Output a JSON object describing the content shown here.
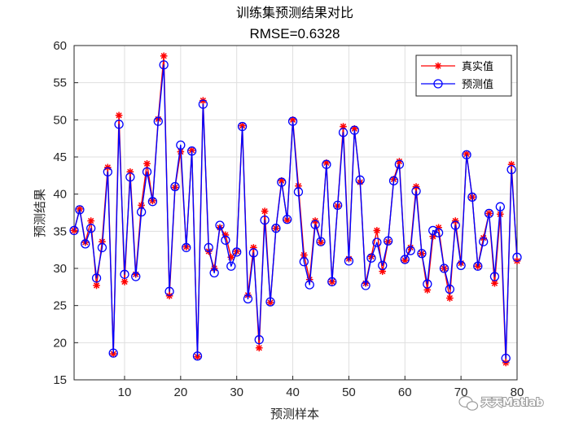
{
  "chart_data": {
    "type": "line",
    "title": "训练集预测结果对比",
    "subtitle": "RMSE=0.6328",
    "xlabel": "预测样本",
    "ylabel": "预测结果",
    "xlim": [
      1,
      80
    ],
    "ylim": [
      15,
      60
    ],
    "xticks": [
      10,
      20,
      30,
      40,
      50,
      60,
      70,
      80
    ],
    "yticks": [
      15,
      20,
      25,
      30,
      35,
      40,
      45,
      50,
      55,
      60
    ],
    "grid": true,
    "legend_position": "top-right",
    "x": [
      1,
      2,
      3,
      4,
      5,
      6,
      7,
      8,
      9,
      10,
      11,
      12,
      13,
      14,
      15,
      16,
      17,
      18,
      19,
      20,
      21,
      22,
      23,
      24,
      25,
      26,
      27,
      28,
      29,
      30,
      31,
      32,
      33,
      34,
      35,
      36,
      37,
      38,
      39,
      40,
      41,
      42,
      43,
      44,
      45,
      46,
      47,
      48,
      49,
      50,
      51,
      52,
      53,
      54,
      55,
      56,
      57,
      58,
      59,
      60,
      61,
      62,
      63,
      64,
      65,
      66,
      67,
      68,
      69,
      70,
      71,
      72,
      73,
      74,
      75,
      76,
      77,
      78,
      79,
      80
    ],
    "series": [
      {
        "name": "真实值",
        "color": "#ff0000",
        "marker": "asterisk",
        "values": [
          35.1,
          38.0,
          33.5,
          36.4,
          27.7,
          33.6,
          43.6,
          18.5,
          50.6,
          28.2,
          43.0,
          29.2,
          38.5,
          44.1,
          39.1,
          50.1,
          58.6,
          26.3,
          40.9,
          45.7,
          32.9,
          45.9,
          18.1,
          52.6,
          32.3,
          30.0,
          35.5,
          34.5,
          31.5,
          32.3,
          49.2,
          26.4,
          32.8,
          19.3,
          37.7,
          25.4,
          35.4,
          41.8,
          36.5,
          50.0,
          41.1,
          31.8,
          28.5,
          36.4,
          33.5,
          44.2,
          28.2,
          38.4,
          49.1,
          31.3,
          48.8,
          41.6,
          28.0,
          31.6,
          35.1,
          29.6,
          33.6,
          42.0,
          44.4,
          31.1,
          32.8,
          41.0,
          32.0,
          27.1,
          34.3,
          35.5,
          30.0,
          26.0,
          36.4,
          30.7,
          45.4,
          39.6,
          30.3,
          34.1,
          37.4,
          28.0,
          37.3,
          17.3,
          44.0,
          31.0
        ]
      },
      {
        "name": "预测值",
        "color": "#0000ff",
        "marker": "circle",
        "values": [
          35.1,
          37.9,
          33.3,
          35.4,
          28.7,
          32.8,
          43.0,
          18.6,
          49.4,
          29.2,
          42.3,
          28.9,
          37.6,
          43.0,
          39.0,
          49.8,
          57.4,
          26.9,
          41.0,
          46.6,
          32.8,
          45.8,
          18.2,
          52.1,
          32.8,
          29.4,
          35.8,
          33.8,
          30.3,
          32.2,
          49.1,
          25.9,
          32.1,
          20.4,
          36.5,
          25.5,
          35.4,
          41.6,
          36.6,
          49.8,
          40.3,
          30.9,
          27.8,
          35.9,
          33.6,
          44.0,
          28.2,
          38.5,
          48.3,
          31.0,
          48.6,
          41.9,
          27.7,
          31.4,
          33.5,
          30.4,
          33.7,
          41.8,
          44.0,
          31.2,
          32.4,
          40.4,
          32.0,
          27.9,
          35.1,
          34.8,
          30.0,
          27.2,
          35.8,
          30.4,
          45.3,
          39.6,
          30.3,
          33.6,
          37.4,
          28.9,
          38.3,
          17.9,
          43.3,
          31.5
        ]
      }
    ]
  },
  "watermark": {
    "text": "天天Matlab",
    "icon": "wechat-icon"
  }
}
